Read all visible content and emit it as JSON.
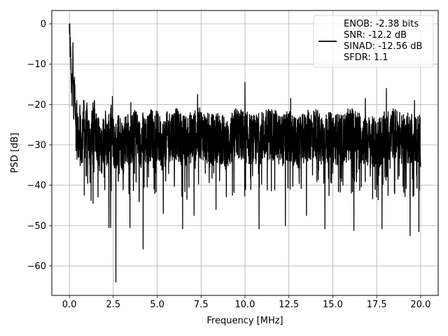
{
  "chart_data": {
    "type": "line",
    "title": "",
    "xlabel": "Frequency [MHz]",
    "ylabel": "PSD [dB]",
    "xlim": [
      -1.0,
      21.0
    ],
    "ylim": [
      -67.3,
      3.3
    ],
    "xticks": [
      0.0,
      2.5,
      5.0,
      7.5,
      10.0,
      12.5,
      15.0,
      17.5,
      20.0
    ],
    "xtick_labels": [
      "0.0",
      "2.5",
      "5.0",
      "7.5",
      "10.0",
      "12.5",
      "15.0",
      "17.5",
      "20.0"
    ],
    "yticks": [
      0,
      -10,
      -20,
      -30,
      -40,
      -50,
      -60
    ],
    "ytick_labels": [
      "0",
      "−10",
      "−20",
      "−30",
      "−40",
      "−50",
      "−60"
    ],
    "grid": true,
    "legend_position": "top-right",
    "series": [
      {
        "name": "ENOB: -2.38 bits\nSNR: -12.2 dB\nSINAD: -12.56 dB\nSFDR: 1.1",
        "color": "#000000",
        "x": [
          0,
          0.05,
          0.1,
          0.15,
          0.2,
          0.25,
          0.3,
          0.35,
          0.4,
          0.5,
          0.6,
          0.7,
          0.8,
          0.9,
          1.0,
          1.2,
          1.4,
          1.6,
          1.8,
          2.0,
          2.2,
          2.35,
          2.5,
          2.65,
          2.8,
          3.0,
          3.2,
          3.5,
          3.8,
          4.0,
          4.2,
          4.4,
          4.7,
          5.0,
          5.3,
          5.6,
          6.0,
          6.5,
          7.0,
          7.5,
          8.0,
          8.5,
          9.0,
          9.5,
          10.0,
          10.5,
          11.0,
          11.5,
          12.0,
          12.5,
          13.0,
          13.5,
          14.0,
          14.5,
          15.0,
          15.5,
          16.0,
          16.5,
          17.0,
          17.5,
          18.0,
          18.5,
          19.0,
          19.5,
          20.0
        ],
        "y": [
          0,
          -6,
          -12,
          -18,
          -8,
          -22,
          -14,
          -26,
          -18,
          -30,
          -24,
          -33,
          -22,
          -28,
          -26,
          -30,
          -24,
          -28,
          -32,
          -27,
          -30,
          -26,
          -29,
          -31,
          -27,
          -30,
          -28,
          -29,
          -27,
          -30,
          -28,
          -29,
          -27,
          -28,
          -30,
          -28,
          -27,
          -29,
          -28,
          -27,
          -29,
          -28,
          -30,
          -27,
          -28,
          -29,
          -28,
          -27,
          -29,
          -28,
          -30,
          -28,
          -27,
          -29,
          -28,
          -29,
          -27,
          -28,
          -29,
          -30,
          -28,
          -27,
          -29,
          -28,
          -29
        ]
      }
    ],
    "dips": [
      {
        "x": 0.85,
        "y": -42.5
      },
      {
        "x": 1.35,
        "y": -44.5
      },
      {
        "x": 2.25,
        "y": -50.5
      },
      {
        "x": 2.35,
        "y": -50.5
      },
      {
        "x": 2.65,
        "y": -64.0
      },
      {
        "x": 3.45,
        "y": -50.5
      },
      {
        "x": 4.2,
        "y": -55.8
      },
      {
        "x": 5.35,
        "y": -47.0
      },
      {
        "x": 6.45,
        "y": -50.8
      },
      {
        "x": 7.1,
        "y": -47.5
      },
      {
        "x": 8.35,
        "y": -46.0
      },
      {
        "x": 10.8,
        "y": -50.8
      },
      {
        "x": 12.3,
        "y": -50.0
      },
      {
        "x": 13.5,
        "y": -47.5
      },
      {
        "x": 14.55,
        "y": -50.8
      },
      {
        "x": 16.2,
        "y": -51.2
      },
      {
        "x": 17.8,
        "y": -50.8
      },
      {
        "x": 19.4,
        "y": -52.5
      },
      {
        "x": 19.9,
        "y": -51.5
      }
    ],
    "peaks": [
      {
        "x": 10.0,
        "y": -14.5
      },
      {
        "x": 18.05,
        "y": -16.0
      },
      {
        "x": 7.3,
        "y": -17.5
      },
      {
        "x": 2.45,
        "y": -18.0
      },
      {
        "x": 16.85,
        "y": -18.5
      },
      {
        "x": 19.65,
        "y": -19.0
      },
      {
        "x": 12.6,
        "y": -18.5
      },
      {
        "x": 3.5,
        "y": -19.5
      }
    ]
  }
}
